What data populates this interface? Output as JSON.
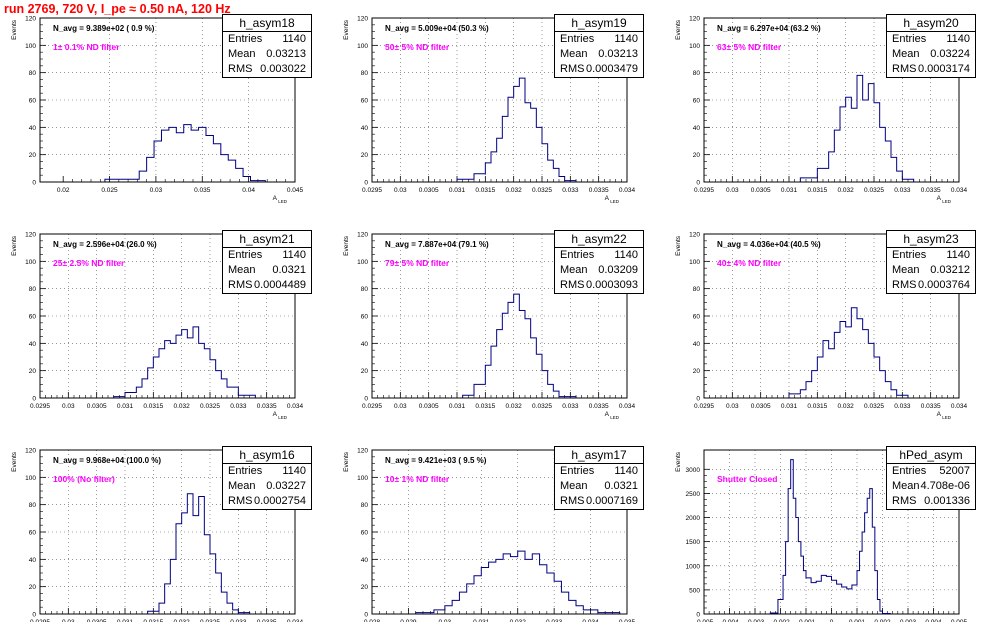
{
  "run_title": "run 2769,   720 V, I_pe ≈ 0.50 nA, 120 Hz",
  "colors": {
    "histogram": "#000080",
    "annotation": "#ff00ff",
    "run_title": "#ff0000",
    "grid": "#555555"
  },
  "stats_labels": {
    "entries": "Entries",
    "mean": "Mean",
    "rms": "RMS"
  },
  "chart_data": [
    {
      "type": "histogram",
      "name": "h_asym18",
      "stats": {
        "entries": "1140",
        "mean": "0.03213",
        "rms": "0.003022"
      },
      "navg_label": "N_avg = 9.389e+02 ( 0.9 %)",
      "filter_label": "1± 0.1% ND filter",
      "ylabel": "Events",
      "xlabel": "A_LED",
      "xlim": [
        0.0175,
        0.045
      ],
      "ylim": [
        0,
        120
      ],
      "xticks": [
        0.02,
        0.025,
        0.03,
        0.035,
        0.04,
        0.045
      ],
      "xtick_labels": [
        "0.02",
        "0.025",
        "0.03",
        "0.035",
        "0.04",
        "0.045"
      ],
      "yticks": [
        0,
        20,
        40,
        60,
        80,
        100,
        120
      ],
      "grid": true,
      "bin_edges": [
        0.0245,
        0.0282,
        0.029,
        0.0298,
        0.0306,
        0.0314,
        0.0322,
        0.033,
        0.0338,
        0.0346,
        0.0354,
        0.0362,
        0.037,
        0.0378,
        0.0386,
        0.0394,
        0.0402,
        0.0418
      ],
      "counts": [
        2,
        8,
        18,
        30,
        38,
        40,
        36,
        42,
        38,
        40,
        34,
        28,
        20,
        16,
        10,
        4,
        1
      ]
    },
    {
      "type": "histogram",
      "name": "h_asym19",
      "stats": {
        "entries": "1140",
        "mean": "0.03213",
        "rms": "0.0003479"
      },
      "navg_label": "N_avg = 5.009e+04 (50.3 %)",
      "filter_label": "50± 5% ND filter",
      "ylabel": "Events",
      "xlabel": "A_LED",
      "xlim": [
        0.0295,
        0.034
      ],
      "ylim": [
        0,
        120
      ],
      "xticks": [
        0.0295,
        0.03,
        0.0305,
        0.031,
        0.0315,
        0.032,
        0.0325,
        0.033,
        0.0335,
        0.034
      ],
      "xtick_labels": [
        "0.0295",
        "0.03",
        "0.0305",
        "0.031",
        "0.0315",
        "0.032",
        "0.0325",
        "0.033",
        "0.0335",
        "0.034"
      ],
      "yticks": [
        0,
        20,
        40,
        60,
        80,
        100,
        120
      ],
      "grid": true,
      "bin_edges": [
        0.031,
        0.0313,
        0.0315,
        0.0316,
        0.0317,
        0.0318,
        0.0319,
        0.032,
        0.0321,
        0.0322,
        0.0323,
        0.0324,
        0.0325,
        0.0326,
        0.0327,
        0.0328,
        0.0329,
        0.0331
      ],
      "counts": [
        2,
        6,
        14,
        22,
        32,
        48,
        62,
        70,
        76,
        58,
        54,
        40,
        28,
        16,
        10,
        4,
        1
      ]
    },
    {
      "type": "histogram",
      "name": "h_asym20",
      "stats": {
        "entries": "1140",
        "mean": "0.03224",
        "rms": "0.0003174"
      },
      "navg_label": "N_avg = 6.297e+04 (63.2 %)",
      "filter_label": "63± 5% ND filter",
      "ylabel": "Events",
      "xlabel": "A_LED",
      "xlim": [
        0.0295,
        0.034
      ],
      "ylim": [
        0,
        120
      ],
      "xticks": [
        0.0295,
        0.03,
        0.0305,
        0.031,
        0.0315,
        0.032,
        0.0325,
        0.033,
        0.0335,
        0.034
      ],
      "xtick_labels": [
        "0.0295",
        "0.03",
        "0.0305",
        "0.031",
        "0.0315",
        "0.032",
        "0.0325",
        "0.033",
        "0.0335",
        "0.034"
      ],
      "yticks": [
        0,
        20,
        40,
        60,
        80,
        100,
        120
      ],
      "grid": true,
      "bin_edges": [
        0.0312,
        0.0315,
        0.0317,
        0.0318,
        0.0319,
        0.032,
        0.0321,
        0.0322,
        0.0323,
        0.0324,
        0.0325,
        0.0326,
        0.0327,
        0.0328,
        0.0329,
        0.033,
        0.0332
      ],
      "counts": [
        3,
        10,
        22,
        38,
        55,
        62,
        54,
        78,
        60,
        72,
        58,
        40,
        30,
        18,
        8,
        2
      ]
    },
    {
      "type": "histogram",
      "name": "h_asym21",
      "stats": {
        "entries": "1140",
        "mean": "0.0321",
        "rms": "0.0004489"
      },
      "navg_label": "N_avg = 2.596e+04 (26.0 %)",
      "filter_label": "25± 2.5% ND filter",
      "ylabel": "Events",
      "xlabel": "A_LED",
      "xlim": [
        0.0295,
        0.034
      ],
      "ylim": [
        0,
        120
      ],
      "xticks": [
        0.0295,
        0.03,
        0.0305,
        0.031,
        0.0315,
        0.032,
        0.0325,
        0.033,
        0.0335,
        0.034
      ],
      "xtick_labels": [
        "0.0295",
        "0.03",
        "0.0305",
        "0.031",
        "0.0315",
        "0.032",
        "0.0325",
        "0.033",
        "0.0335",
        "0.034"
      ],
      "yticks": [
        0,
        20,
        40,
        60,
        80,
        100,
        120
      ],
      "grid": true,
      "bin_edges": [
        0.0308,
        0.031,
        0.0312,
        0.0313,
        0.0314,
        0.0315,
        0.0316,
        0.0317,
        0.0318,
        0.0319,
        0.032,
        0.0321,
        0.0322,
        0.0323,
        0.0324,
        0.0325,
        0.0326,
        0.0327,
        0.0328,
        0.033,
        0.0333
      ],
      "counts": [
        1,
        4,
        8,
        14,
        22,
        30,
        36,
        42,
        40,
        46,
        50,
        44,
        52,
        40,
        36,
        28,
        20,
        14,
        8,
        2
      ]
    },
    {
      "type": "histogram",
      "name": "h_asym22",
      "stats": {
        "entries": "1140",
        "mean": "0.03209",
        "rms": "0.0003093"
      },
      "navg_label": "N_avg = 7.887e+04 (79.1 %)",
      "filter_label": "79± 5% ND filter",
      "ylabel": "Events",
      "xlabel": "A_LED",
      "xlim": [
        0.0295,
        0.034
      ],
      "ylim": [
        0,
        120
      ],
      "xticks": [
        0.0295,
        0.03,
        0.0305,
        0.031,
        0.0315,
        0.032,
        0.0325,
        0.033,
        0.0335,
        0.034
      ],
      "xtick_labels": [
        "0.0295",
        "0.03",
        "0.0305",
        "0.031",
        "0.0315",
        "0.032",
        "0.0325",
        "0.033",
        "0.0335",
        "0.034"
      ],
      "yticks": [
        0,
        20,
        40,
        60,
        80,
        100,
        120
      ],
      "grid": true,
      "bin_edges": [
        0.0311,
        0.0313,
        0.0315,
        0.0316,
        0.0317,
        0.0318,
        0.0319,
        0.032,
        0.0321,
        0.0322,
        0.0323,
        0.0324,
        0.0325,
        0.0326,
        0.0327,
        0.0328,
        0.0331
      ],
      "counts": [
        2,
        10,
        24,
        38,
        50,
        62,
        70,
        76,
        64,
        58,
        44,
        32,
        20,
        10,
        5,
        1
      ]
    },
    {
      "type": "histogram",
      "name": "h_asym23",
      "stats": {
        "entries": "1140",
        "mean": "0.03212",
        "rms": "0.0003764"
      },
      "navg_label": "N_avg = 4.036e+04 (40.5 %)",
      "filter_label": "40± 4% ND filter",
      "ylabel": "Events",
      "xlabel": "A_LED",
      "xlim": [
        0.0295,
        0.034
      ],
      "ylim": [
        0,
        120
      ],
      "xticks": [
        0.0295,
        0.03,
        0.0305,
        0.031,
        0.0315,
        0.032,
        0.0325,
        0.033,
        0.0335,
        0.034
      ],
      "xtick_labels": [
        "0.0295",
        "0.03",
        "0.0305",
        "0.031",
        "0.0315",
        "0.032",
        "0.0325",
        "0.033",
        "0.0335",
        "0.034"
      ],
      "yticks": [
        0,
        20,
        40,
        60,
        80,
        100,
        120
      ],
      "grid": true,
      "bin_edges": [
        0.031,
        0.0312,
        0.0313,
        0.0314,
        0.0315,
        0.0316,
        0.0317,
        0.0318,
        0.0319,
        0.032,
        0.0321,
        0.0322,
        0.0323,
        0.0324,
        0.0325,
        0.0326,
        0.0327,
        0.0328,
        0.0329,
        0.0331
      ],
      "counts": [
        3,
        6,
        12,
        20,
        30,
        42,
        36,
        48,
        56,
        52,
        66,
        58,
        50,
        40,
        30,
        20,
        12,
        6,
        2
      ]
    },
    {
      "type": "histogram",
      "name": "h_asym16",
      "stats": {
        "entries": "1140",
        "mean": "0.03227",
        "rms": "0.0002754"
      },
      "navg_label": "N_avg = 9.968e+04 (100.0 %)",
      "filter_label": "100% (No filter)",
      "ylabel": "Events",
      "xlabel": "A_LED",
      "xlim": [
        0.0295,
        0.034
      ],
      "ylim": [
        0,
        120
      ],
      "xticks": [
        0.0295,
        0.03,
        0.0305,
        0.031,
        0.0315,
        0.032,
        0.0325,
        0.033,
        0.0335,
        0.034
      ],
      "xtick_labels": [
        "0.0295",
        "0.03",
        "0.0305",
        "0.031",
        "0.0315",
        "0.032",
        "0.0325",
        "0.033",
        "0.0335",
        "0.034"
      ],
      "yticks": [
        0,
        20,
        40,
        60,
        80,
        100,
        120
      ],
      "grid": true,
      "bin_edges": [
        0.0314,
        0.0316,
        0.0317,
        0.0318,
        0.0319,
        0.032,
        0.0321,
        0.0322,
        0.0323,
        0.0324,
        0.0325,
        0.0326,
        0.0327,
        0.0328,
        0.0329,
        0.033,
        0.0332
      ],
      "counts": [
        2,
        8,
        22,
        40,
        66,
        74,
        88,
        72,
        86,
        58,
        44,
        30,
        16,
        8,
        3,
        1
      ]
    },
    {
      "type": "histogram",
      "name": "h_asym17",
      "stats": {
        "entries": "1140",
        "mean": "0.0321",
        "rms": "0.0007169"
      },
      "navg_label": "N_avg = 9.421e+03 ( 9.5 %)",
      "filter_label": "10± 1% ND filter",
      "ylabel": "Events",
      "xlabel": "A_LED",
      "xlim": [
        0.028,
        0.035
      ],
      "ylim": [
        0,
        120
      ],
      "xticks": [
        0.028,
        0.029,
        0.03,
        0.031,
        0.032,
        0.033,
        0.034,
        0.035
      ],
      "xtick_labels": [
        "0.028",
        "0.029",
        "0.03",
        "0.031",
        "0.032",
        "0.033",
        "0.034",
        "0.035"
      ],
      "yticks": [
        0,
        20,
        40,
        60,
        80,
        100,
        120
      ],
      "grid": true,
      "bin_edges": [
        0.0292,
        0.0297,
        0.03,
        0.0302,
        0.0304,
        0.0306,
        0.0308,
        0.031,
        0.0312,
        0.0314,
        0.0316,
        0.0318,
        0.032,
        0.0322,
        0.0324,
        0.0326,
        0.0328,
        0.033,
        0.0332,
        0.0334,
        0.0336,
        0.0338,
        0.0342,
        0.0348
      ],
      "counts": [
        1,
        3,
        6,
        10,
        16,
        22,
        28,
        34,
        38,
        40,
        44,
        42,
        46,
        40,
        44,
        36,
        30,
        24,
        16,
        10,
        6,
        3,
        1
      ]
    },
    {
      "type": "histogram",
      "name": "hPed_asym",
      "stats": {
        "entries": "52007",
        "mean": "4.708e-06",
        "rms": "0.001336"
      },
      "filter_label": "Shutter Closed",
      "ylabel": "Events",
      "xlabel": "A_LED",
      "xlim": [
        -0.005,
        0.005
      ],
      "ylim": [
        0,
        3400
      ],
      "xticks": [
        -0.005,
        -0.004,
        -0.003,
        -0.002,
        -0.001,
        0,
        0.001,
        0.002,
        0.003,
        0.004,
        0.005
      ],
      "xtick_labels": [
        "-0.005",
        "-0.004",
        "-0.003",
        "-0.002",
        "-0.001",
        "0",
        "0.001",
        "0.002",
        "0.003",
        "0.004",
        "0.005"
      ],
      "yticks": [
        0,
        500,
        1000,
        1500,
        2000,
        2500,
        3000
      ],
      "ytick_labels": [
        "0",
        "500",
        "1000",
        "1500",
        "2000",
        "2500",
        "3000"
      ],
      "grid": true,
      "bin_edges": [
        -0.0024,
        -0.0021,
        -0.0019,
        -0.0018,
        -0.0017,
        -0.0016,
        -0.0015,
        -0.0014,
        -0.0013,
        -0.0012,
        -0.0011,
        -0.001,
        -0.0008,
        -0.0006,
        -0.0004,
        -0.0002,
        0.0,
        0.0002,
        0.0004,
        0.0006,
        0.0008,
        0.001,
        0.0011,
        0.0012,
        0.0013,
        0.0014,
        0.0015,
        0.0016,
        0.0017,
        0.0018,
        0.0019,
        0.002,
        0.0023
      ],
      "counts": [
        20,
        300,
        800,
        1500,
        2600,
        3200,
        2400,
        2000,
        1500,
        1200,
        900,
        750,
        650,
        680,
        800,
        780,
        700,
        620,
        560,
        520,
        600,
        900,
        1300,
        1700,
        2100,
        2400,
        2600,
        1800,
        900,
        300,
        60,
        10
      ]
    }
  ]
}
